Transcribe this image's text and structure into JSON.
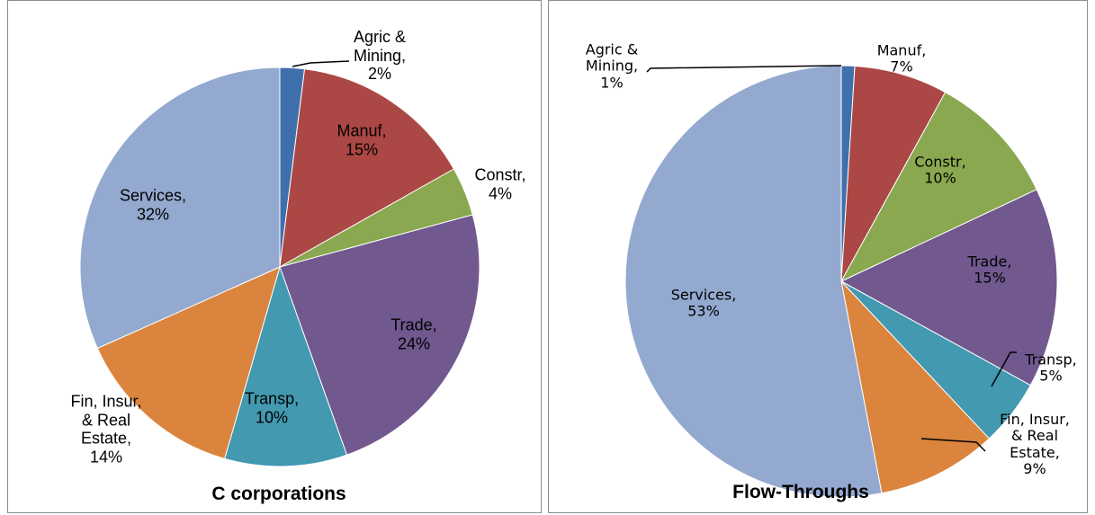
{
  "chart_data": [
    {
      "type": "pie",
      "title": "C corporations",
      "categories": [
        "Agric & Mining,",
        "Manuf,",
        "Constr,",
        "Trade,",
        "Transp,",
        "Fin, Insur, & Real Estate,",
        "Services,"
      ],
      "values": [
        2,
        15,
        4,
        24,
        10,
        14,
        32
      ],
      "value_labels": [
        "2%",
        "15%",
        "4%",
        "24%",
        "10%",
        "14%",
        "32%"
      ],
      "colors": [
        "#3f6fad",
        "#ab4744",
        "#89a84f",
        "#71588f",
        "#4299b0",
        "#db843d",
        "#93a9cf"
      ]
    },
    {
      "type": "pie",
      "title": "Flow-Throughs",
      "categories": [
        "Agric & Mining,",
        "Manuf,",
        "Constr,",
        "Trade,",
        "Transp,",
        "Fin, Insur, & Real Estate,",
        "Services,"
      ],
      "values": [
        1,
        7,
        10,
        15,
        5,
        9,
        53
      ],
      "value_labels": [
        "1%",
        "7%",
        "10%",
        "15%",
        "5%",
        "9%",
        "53%"
      ],
      "colors": [
        "#3f6fad",
        "#ab4744",
        "#89a84f",
        "#71588f",
        "#4299b0",
        "#db843d",
        "#93a9cf"
      ]
    }
  ]
}
